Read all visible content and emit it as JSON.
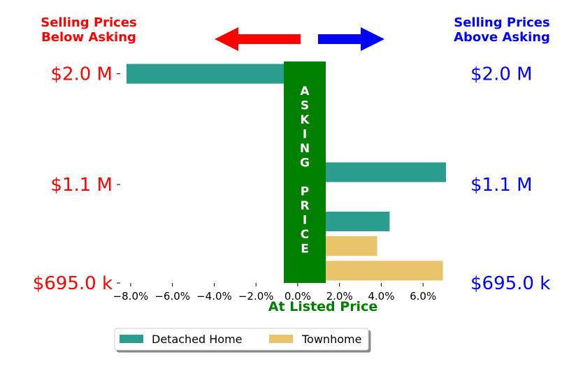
{
  "chart_data": {
    "type": "bar",
    "orientation": "horizontal",
    "title": "",
    "xlabel": "At Listed Price",
    "ylabel": "",
    "xlim": [
      -8.5,
      7.4
    ],
    "ylim": [
      -0.5,
      8.5
    ],
    "x_ticks": [
      -8,
      -6,
      -4,
      -2,
      0,
      2,
      4,
      6
    ],
    "x_tick_labels": [
      "−8.0%",
      "−6.0%",
      "−4.0%",
      "−2.0%",
      "0.0%",
      "2.0%",
      "4.0%",
      "6.0%"
    ],
    "left_header": "Selling Prices\nBelow Asking",
    "right_header": "Selling Prices\nAbove Asking",
    "price_labels": [
      {
        "row": 8,
        "text": "$2.0 M"
      },
      {
        "row": 3.5,
        "text": "$1.1 M"
      },
      {
        "row": -0.5,
        "text": "$695.0 k"
      }
    ],
    "center_band_text": [
      "A",
      "S",
      "K",
      "I",
      "N",
      "G",
      "",
      "P",
      "R",
      "I",
      "C",
      "E"
    ],
    "bars": [
      {
        "row": 8,
        "value": -8.2,
        "series": "Detached Home"
      },
      {
        "row": 7,
        "value": 1.2,
        "series": "Detached Home"
      },
      {
        "row": 6,
        "value": 1.2,
        "series": "Detached Home"
      },
      {
        "row": 5,
        "value": 1.25,
        "series": "Detached Home"
      },
      {
        "row": 4,
        "value": 7.1,
        "series": "Detached Home"
      },
      {
        "row": 3,
        "value": 1.35,
        "series": "Townhome"
      },
      {
        "row": 2,
        "value": 4.4,
        "series": "Detached Home"
      },
      {
        "row": 1,
        "value": 3.8,
        "series": "Townhome"
      },
      {
        "row": 0,
        "value": 6.95,
        "series": "Townhome"
      }
    ],
    "series": [
      {
        "name": "Detached Home",
        "color": "#2a9d8f"
      },
      {
        "name": "Townhome",
        "color": "#e9c46a"
      }
    ],
    "legend_position": "bottom",
    "grid": false
  },
  "colors": {
    "below": "#ff0000",
    "above": "#0000ff",
    "band": "#008000",
    "band_text": "#ffffff"
  }
}
